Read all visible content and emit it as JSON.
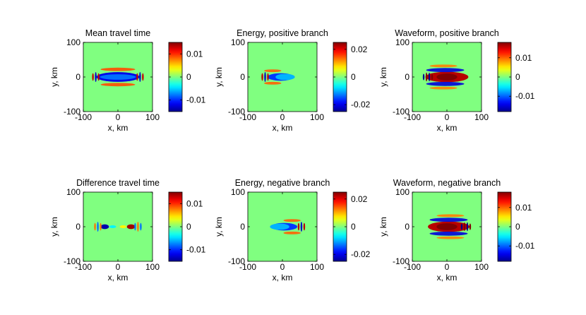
{
  "figure": {
    "colormap": "jet",
    "jet_stops": [
      "#00008f",
      "#0000ff",
      "#00ffff",
      "#ffff00",
      "#ff0000",
      "#800000"
    ],
    "background_value_color": "#80ff80"
  },
  "chart_data": [
    {
      "type": "heatmap",
      "title": "Mean travel time",
      "xlabel": "x, km",
      "ylabel": "y, km",
      "xlim": [
        -100,
        100
      ],
      "ylim": [
        -100,
        100
      ],
      "xticks": [
        "-100",
        "0",
        "100"
      ],
      "yticks": [
        "100",
        "0",
        "-100"
      ],
      "clim": [
        -0.015,
        0.015
      ],
      "colorbar_ticks": [
        {
          "value": 0.01,
          "label": "0.01"
        },
        {
          "value": 0,
          "label": "0"
        },
        {
          "value": -0.01,
          "label": "-0.01"
        }
      ],
      "features": [
        {
          "shape": "ellipse",
          "cx": 0,
          "cy": 0,
          "rx": 62,
          "ry": 14,
          "value": -0.012
        },
        {
          "shape": "ellipse",
          "cx": 0,
          "cy": 0,
          "rx": 52,
          "ry": 8,
          "value": -0.008
        },
        {
          "shape": "arc",
          "cx": 0,
          "cy": 22,
          "rx": 50,
          "ry": 5,
          "value": 0.009
        },
        {
          "shape": "arc",
          "cx": 0,
          "cy": -22,
          "rx": 50,
          "ry": 5,
          "value": 0.009
        },
        {
          "shape": "fringe",
          "cx": -64,
          "cy": 0,
          "count": 3,
          "value": 0.013
        },
        {
          "shape": "fringe",
          "cx": 64,
          "cy": 0,
          "count": 3,
          "value": 0.013
        }
      ]
    },
    {
      "type": "heatmap",
      "title": "Energy, positive branch",
      "xlabel": "x, km",
      "ylabel": "y, km",
      "xlim": [
        -100,
        100
      ],
      "ylim": [
        -100,
        100
      ],
      "xticks": [
        "-100",
        "0",
        "100"
      ],
      "yticks": [
        "100",
        "0",
        "-100"
      ],
      "clim": [
        -0.025,
        0.025
      ],
      "colorbar_ticks": [
        {
          "value": 0.02,
          "label": "0.02"
        },
        {
          "value": 0,
          "label": "0"
        },
        {
          "value": -0.02,
          "label": "-0.02"
        }
      ],
      "features": [
        {
          "shape": "ellipse",
          "cx": -5,
          "cy": 0,
          "rx": 38,
          "ry": 11,
          "value": -0.016
        },
        {
          "shape": "ellipse",
          "cx": 8,
          "cy": 0,
          "rx": 28,
          "ry": 9,
          "value": -0.01
        },
        {
          "shape": "arc",
          "cx": -28,
          "cy": 18,
          "rx": 25,
          "ry": 4,
          "value": 0.014
        },
        {
          "shape": "arc",
          "cx": -28,
          "cy": -18,
          "rx": 25,
          "ry": 4,
          "value": 0.014
        },
        {
          "shape": "fringe",
          "cx": -50,
          "cy": 0,
          "count": 3,
          "value": 0.022
        }
      ]
    },
    {
      "type": "heatmap",
      "title": "Waveform, positive branch",
      "xlabel": "x, km",
      "ylabel": "y, km",
      "xlim": [
        -100,
        100
      ],
      "ylim": [
        -100,
        100
      ],
      "xticks": [
        "-100",
        "0",
        "100"
      ],
      "yticks": [
        "100",
        "0",
        "-100"
      ],
      "clim": [
        -0.018,
        0.018
      ],
      "colorbar_ticks": [
        {
          "value": 0.01,
          "label": "0.01"
        },
        {
          "value": 0,
          "label": "0"
        },
        {
          "value": -0.01,
          "label": "-0.01"
        }
      ],
      "features": [
        {
          "shape": "ellipse",
          "cx": 0,
          "cy": 0,
          "rx": 62,
          "ry": 15,
          "value": 0.016
        },
        {
          "shape": "ellipse",
          "cx": 0,
          "cy": 0,
          "rx": 30,
          "ry": 10,
          "value": 0.019
        },
        {
          "shape": "arc",
          "cx": -5,
          "cy": 20,
          "rx": 55,
          "ry": 6,
          "value": -0.015
        },
        {
          "shape": "arc",
          "cx": -5,
          "cy": -20,
          "rx": 55,
          "ry": 6,
          "value": -0.015
        },
        {
          "shape": "arc",
          "cx": -10,
          "cy": 32,
          "rx": 40,
          "ry": 4,
          "value": 0.009
        },
        {
          "shape": "arc",
          "cx": -10,
          "cy": -32,
          "rx": 40,
          "ry": 4,
          "value": 0.009
        },
        {
          "shape": "fringe",
          "cx": -55,
          "cy": 0,
          "count": 4,
          "value": -0.018
        }
      ]
    },
    {
      "type": "heatmap",
      "title": "Difference travel time",
      "xlabel": "x, km",
      "ylabel": "y, km",
      "xlim": [
        -100,
        100
      ],
      "ylim": [
        -100,
        100
      ],
      "xticks": [
        "-100",
        "0",
        "100"
      ],
      "yticks": [
        "100",
        "0",
        "-100"
      ],
      "clim": [
        -0.015,
        0.015
      ],
      "colorbar_ticks": [
        {
          "value": 0.01,
          "label": "0.01"
        },
        {
          "value": 0,
          "label": "0"
        },
        {
          "value": -0.01,
          "label": "-0.01"
        }
      ],
      "features": [
        {
          "shape": "ellipse",
          "cx": -38,
          "cy": 0,
          "rx": 12,
          "ry": 7,
          "value": -0.014
        },
        {
          "shape": "ellipse",
          "cx": 38,
          "cy": 0,
          "rx": 12,
          "ry": 7,
          "value": 0.014
        },
        {
          "shape": "ellipse",
          "cx": -15,
          "cy": 0,
          "rx": 10,
          "ry": 4,
          "value": -0.004
        },
        {
          "shape": "ellipse",
          "cx": 15,
          "cy": 0,
          "rx": 10,
          "ry": 4,
          "value": 0.004
        },
        {
          "shape": "fringe",
          "cx": -58,
          "cy": 0,
          "count": 3,
          "value": 0.008
        },
        {
          "shape": "fringe",
          "cx": 58,
          "cy": 0,
          "count": 3,
          "value": -0.008
        }
      ]
    },
    {
      "type": "heatmap",
      "title": "Energy, negative branch",
      "xlabel": "x, km",
      "ylabel": "y, km",
      "xlim": [
        -100,
        100
      ],
      "ylim": [
        -100,
        100
      ],
      "xticks": [
        "-100",
        "0",
        "100"
      ],
      "yticks": [
        "100",
        "0",
        "-100"
      ],
      "clim": [
        -0.025,
        0.025
      ],
      "colorbar_ticks": [
        {
          "value": 0.02,
          "label": "0.02"
        },
        {
          "value": 0,
          "label": "0"
        },
        {
          "value": -0.02,
          "label": "-0.02"
        }
      ],
      "features": [
        {
          "shape": "ellipse",
          "cx": 5,
          "cy": 0,
          "rx": 38,
          "ry": 11,
          "value": -0.016
        },
        {
          "shape": "ellipse",
          "cx": -8,
          "cy": 0,
          "rx": 28,
          "ry": 9,
          "value": -0.01
        },
        {
          "shape": "arc",
          "cx": 28,
          "cy": 18,
          "rx": 25,
          "ry": 4,
          "value": 0.014
        },
        {
          "shape": "arc",
          "cx": 28,
          "cy": -18,
          "rx": 25,
          "ry": 4,
          "value": 0.014
        },
        {
          "shape": "fringe",
          "cx": 55,
          "cy": 0,
          "count": 3,
          "value": 0.022
        }
      ]
    },
    {
      "type": "heatmap",
      "title": "Waveform, negative branch",
      "xlabel": "x, km",
      "ylabel": "y, km",
      "xlim": [
        -100,
        100
      ],
      "ylim": [
        -100,
        100
      ],
      "xticks": [
        "-100",
        "0",
        "100"
      ],
      "yticks": [
        "100",
        "0",
        "-100"
      ],
      "clim": [
        -0.018,
        0.018
      ],
      "colorbar_ticks": [
        {
          "value": 0.01,
          "label": "0.01"
        },
        {
          "value": 0,
          "label": "0"
        },
        {
          "value": -0.01,
          "label": "-0.01"
        }
      ],
      "features": [
        {
          "shape": "ellipse",
          "cx": 5,
          "cy": 0,
          "rx": 60,
          "ry": 15,
          "value": 0.016
        },
        {
          "shape": "ellipse",
          "cx": 0,
          "cy": 0,
          "rx": 30,
          "ry": 10,
          "value": 0.019
        },
        {
          "shape": "arc",
          "cx": 5,
          "cy": 20,
          "rx": 55,
          "ry": 6,
          "value": -0.015
        },
        {
          "shape": "arc",
          "cx": 5,
          "cy": -20,
          "rx": 55,
          "ry": 6,
          "value": -0.015
        },
        {
          "shape": "arc",
          "cx": 10,
          "cy": 32,
          "rx": 40,
          "ry": 4,
          "value": 0.009
        },
        {
          "shape": "arc",
          "cx": 10,
          "cy": -32,
          "rx": 40,
          "ry": 4,
          "value": 0.009
        },
        {
          "shape": "fringe",
          "cx": 55,
          "cy": 0,
          "count": 4,
          "value": -0.018
        }
      ]
    }
  ]
}
